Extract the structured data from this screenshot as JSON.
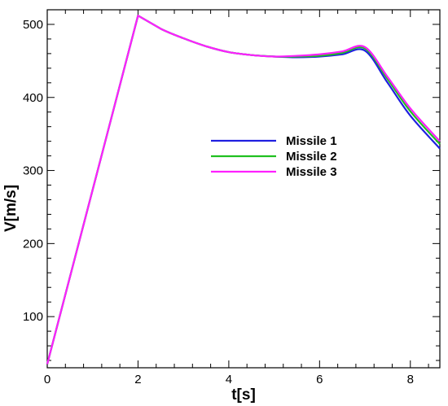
{
  "chart_data": {
    "type": "line",
    "title": "",
    "xlabel": "t[s]",
    "ylabel": "V[m/s]",
    "xlim": [
      0,
      8.65
    ],
    "ylim": [
      30,
      520
    ],
    "xticks": [
      0,
      2,
      4,
      6,
      8
    ],
    "xtick_labels": [
      "0",
      "2",
      "4",
      "6",
      "8"
    ],
    "yticks": [
      100,
      200,
      300,
      400,
      500
    ],
    "ytick_labels": [
      "100",
      "200",
      "300",
      "400",
      "500"
    ],
    "grid": false,
    "legend_position": "center-right",
    "series": [
      {
        "name": "Missile 1",
        "color": "#2020e0",
        "x": [
          0,
          2,
          2.5,
          3,
          3.5,
          4,
          4.5,
          5,
          5.5,
          6,
          6.5,
          7,
          7.5,
          8,
          8.65
        ],
        "y": [
          35,
          512,
          494,
          481,
          470,
          462,
          458,
          456,
          455,
          456,
          459,
          464,
          420,
          375,
          330
        ]
      },
      {
        "name": "Missile 2",
        "color": "#20c020",
        "x": [
          0,
          2,
          2.5,
          3,
          3.5,
          4,
          4.5,
          5,
          5.5,
          6,
          6.5,
          7,
          7.5,
          8,
          8.65
        ],
        "y": [
          35,
          512,
          494,
          481,
          470,
          462,
          458,
          456,
          456,
          457,
          461,
          467,
          425,
          381,
          336
        ]
      },
      {
        "name": "Missile 3",
        "color": "#ff20ff",
        "x": [
          0,
          2,
          2.5,
          3,
          3.5,
          4,
          4.5,
          5,
          5.5,
          6,
          6.5,
          7,
          7.5,
          8,
          8.65
        ],
        "y": [
          35,
          512,
          494,
          481,
          470,
          462,
          458,
          456,
          457,
          459,
          463,
          469,
          428,
          385,
          340
        ]
      }
    ]
  }
}
